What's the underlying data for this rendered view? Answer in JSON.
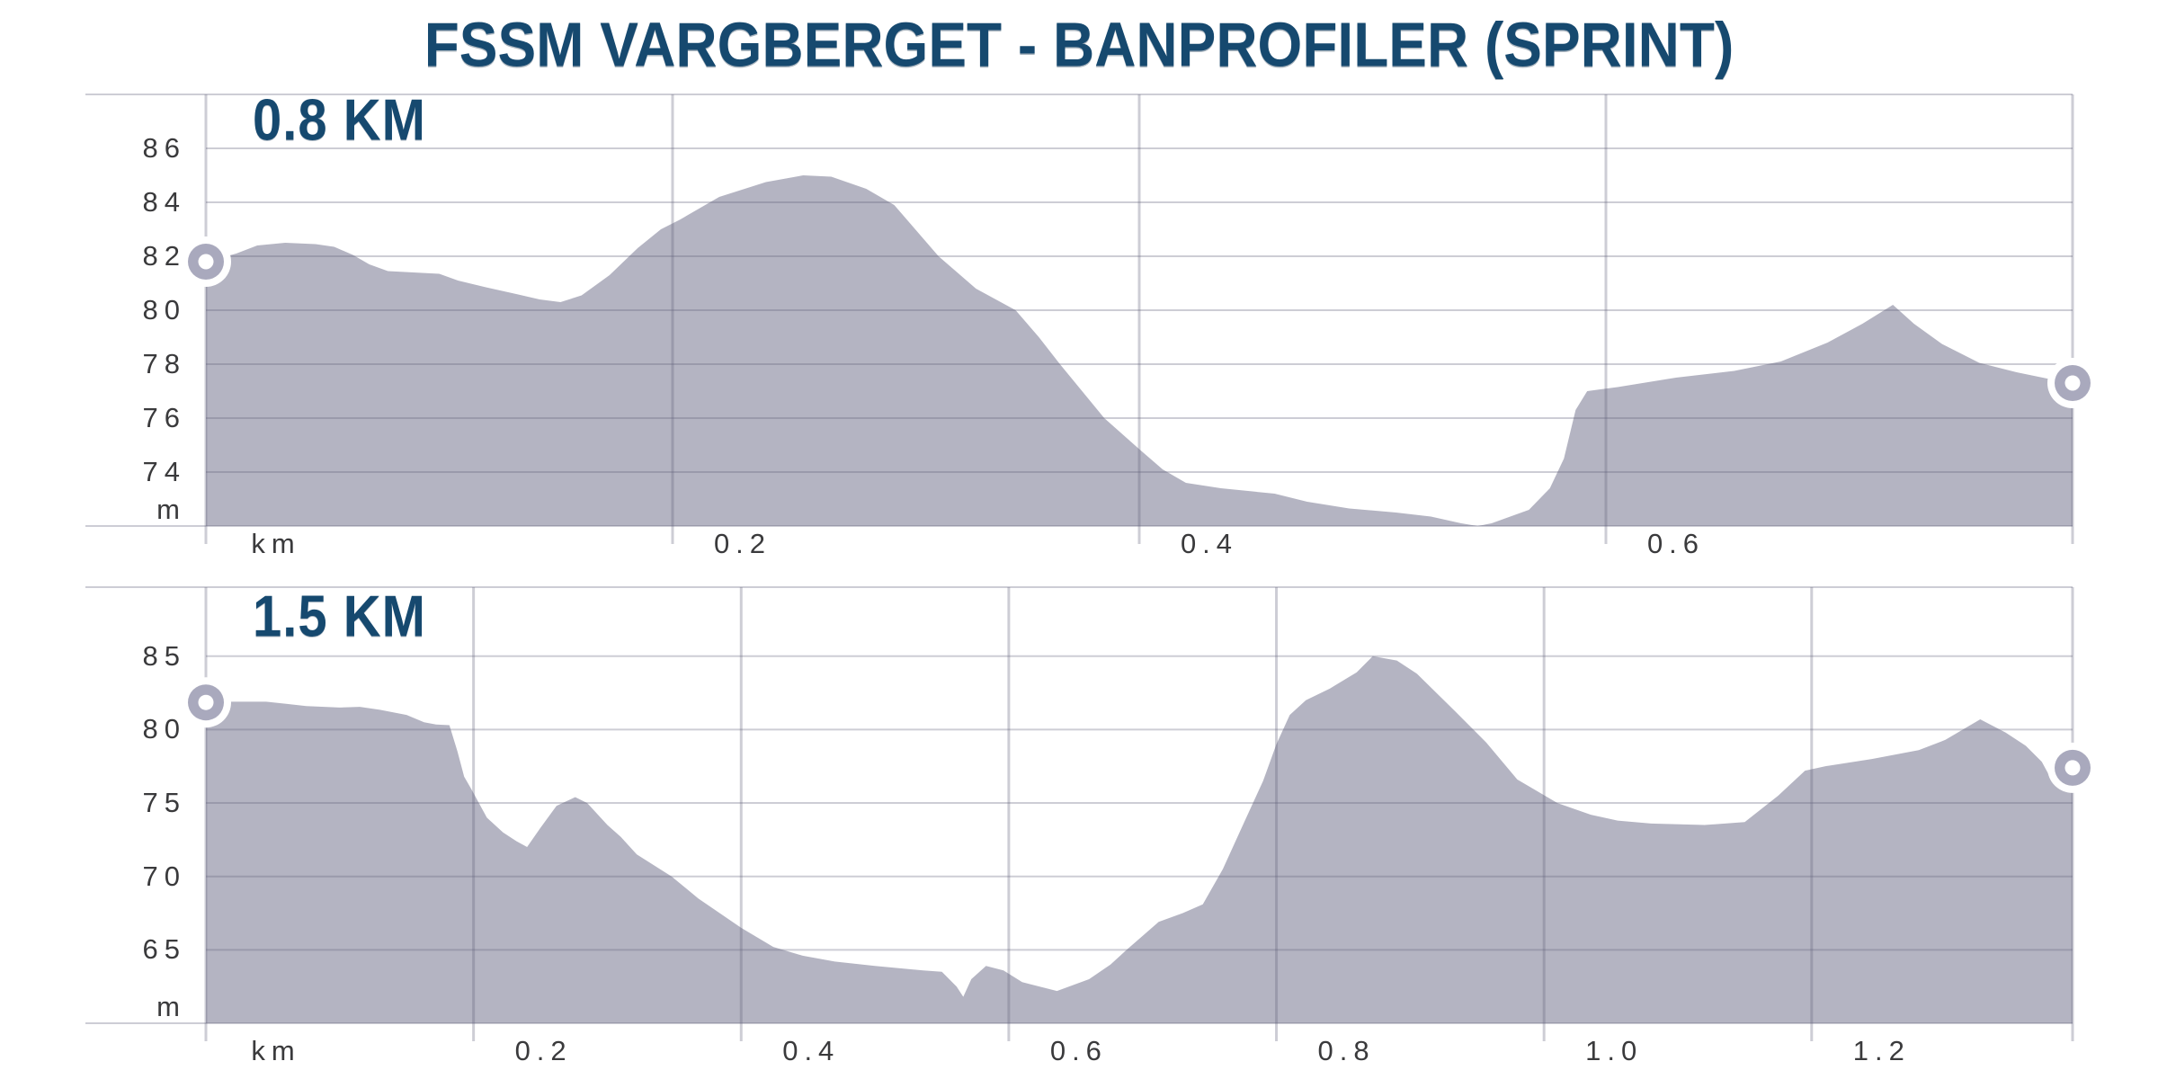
{
  "title": "FSSM VARGBERGET - BANPROFILER (SPRINT)",
  "colors": {
    "title_navy": "#16496f",
    "area_fill": "#b4b4c2",
    "gridline": "rgba(100,100,124,0.32)",
    "tick_text": "#3a3a3c",
    "marker_ring": "#a9a9bd",
    "background": "#ffffff"
  },
  "chart_data": [
    {
      "type": "area",
      "title": "0.8 KM",
      "x_unit_label": "km",
      "y_unit_label": "m",
      "legend": "none",
      "grid": "on",
      "xlim": [
        0,
        0.8
      ],
      "ylim": [
        72,
        88
      ],
      "y_ticks": [
        {
          "value": 86,
          "label": "86"
        },
        {
          "value": 84,
          "label": "84"
        },
        {
          "value": 82,
          "label": "82"
        },
        {
          "value": 80,
          "label": "80"
        },
        {
          "value": 78,
          "label": "78"
        },
        {
          "value": 76,
          "label": "76"
        },
        {
          "value": 74,
          "label": "74"
        },
        {
          "value": 72,
          "label": "m"
        }
      ],
      "x_ticks": [
        {
          "value": 0,
          "label": "km"
        },
        {
          "value": 0.2,
          "label": "0.2"
        },
        {
          "value": 0.4,
          "label": "0.4"
        },
        {
          "value": 0.6,
          "label": "0.6"
        },
        {
          "value": 0.8,
          "label": ""
        }
      ],
      "start_marker": {
        "x": 0,
        "y": 81.8
      },
      "end_marker": {
        "x": 0.8,
        "y": 77.3
      },
      "points": [
        [
          0,
          81.8
        ],
        [
          0.013,
          82.1
        ],
        [
          0.022,
          82.4
        ],
        [
          0.034,
          82.5
        ],
        [
          0.047,
          82.45
        ],
        [
          0.055,
          82.35
        ],
        [
          0.063,
          82.05
        ],
        [
          0.07,
          81.7
        ],
        [
          0.078,
          81.45
        ],
        [
          0.1,
          81.35
        ],
        [
          0.108,
          81.1
        ],
        [
          0.12,
          80.85
        ],
        [
          0.133,
          80.6
        ],
        [
          0.143,
          80.4
        ],
        [
          0.152,
          80.3
        ],
        [
          0.161,
          80.55
        ],
        [
          0.173,
          81.3
        ],
        [
          0.185,
          82.3
        ],
        [
          0.195,
          83.0
        ],
        [
          0.203,
          83.35
        ],
        [
          0.22,
          84.2
        ],
        [
          0.24,
          84.75
        ],
        [
          0.256,
          85.0
        ],
        [
          0.268,
          84.95
        ],
        [
          0.283,
          84.5
        ],
        [
          0.295,
          83.9
        ],
        [
          0.314,
          82.0
        ],
        [
          0.33,
          80.8
        ],
        [
          0.347,
          80.0
        ],
        [
          0.357,
          79.0
        ],
        [
          0.366,
          78.0
        ],
        [
          0.385,
          76.0
        ],
        [
          0.4,
          74.85
        ],
        [
          0.41,
          74.1
        ],
        [
          0.42,
          73.6
        ],
        [
          0.435,
          73.4
        ],
        [
          0.458,
          73.2
        ],
        [
          0.472,
          72.9
        ],
        [
          0.49,
          72.65
        ],
        [
          0.51,
          72.5
        ],
        [
          0.525,
          72.35
        ],
        [
          0.538,
          72.1
        ],
        [
          0.545,
          71.8
        ],
        [
          0.551,
          72.1
        ],
        [
          0.567,
          72.6
        ],
        [
          0.576,
          73.4
        ],
        [
          0.582,
          74.5
        ],
        [
          0.587,
          76.3
        ],
        [
          0.592,
          77.0
        ],
        [
          0.605,
          77.15
        ],
        [
          0.63,
          77.5
        ],
        [
          0.655,
          77.75
        ],
        [
          0.675,
          78.1
        ],
        [
          0.695,
          78.8
        ],
        [
          0.71,
          79.5
        ],
        [
          0.723,
          80.2
        ],
        [
          0.732,
          79.5
        ],
        [
          0.744,
          78.75
        ],
        [
          0.76,
          78.05
        ],
        [
          0.776,
          77.7
        ],
        [
          0.79,
          77.45
        ],
        [
          0.8,
          77.3
        ]
      ]
    },
    {
      "type": "area",
      "title": "1.5 KM",
      "x_unit_label": "km",
      "y_unit_label": "m",
      "legend": "none",
      "grid": "on",
      "xlim": [
        0,
        1.395
      ],
      "ylim": [
        60,
        89.7
      ],
      "y_ticks": [
        {
          "value": 85,
          "label": "85"
        },
        {
          "value": 80,
          "label": "80"
        },
        {
          "value": 75,
          "label": "75"
        },
        {
          "value": 70,
          "label": "70"
        },
        {
          "value": 65,
          "label": "65"
        },
        {
          "value": 60,
          "label": "m"
        }
      ],
      "x_ticks": [
        {
          "value": 0,
          "label": "km"
        },
        {
          "value": 0.2,
          "label": "0.2"
        },
        {
          "value": 0.4,
          "label": "0.4"
        },
        {
          "value": 0.6,
          "label": "0.6"
        },
        {
          "value": 0.8,
          "label": "0.8"
        },
        {
          "value": 1.0,
          "label": "1.0"
        },
        {
          "value": 1.2,
          "label": "1.2"
        },
        {
          "value": 1.4,
          "label": ""
        }
      ],
      "start_marker": {
        "x": 0,
        "y": 81.85
      },
      "end_marker": {
        "x": 1.395,
        "y": 77.4
      },
      "points": [
        [
          0,
          81.85
        ],
        [
          0.02,
          81.9
        ],
        [
          0.045,
          81.9
        ],
        [
          0.06,
          81.75
        ],
        [
          0.075,
          81.6
        ],
        [
          0.1,
          81.5
        ],
        [
          0.115,
          81.55
        ],
        [
          0.13,
          81.35
        ],
        [
          0.15,
          81.0
        ],
        [
          0.163,
          80.5
        ],
        [
          0.172,
          80.35
        ],
        [
          0.182,
          80.3
        ],
        [
          0.188,
          78.5
        ],
        [
          0.193,
          76.8
        ],
        [
          0.198,
          76.0
        ],
        [
          0.21,
          74.0
        ],
        [
          0.222,
          73.0
        ],
        [
          0.232,
          72.4
        ],
        [
          0.24,
          72.0
        ],
        [
          0.25,
          73.3
        ],
        [
          0.262,
          74.8
        ],
        [
          0.276,
          75.4
        ],
        [
          0.285,
          75.0
        ],
        [
          0.3,
          73.5
        ],
        [
          0.31,
          72.7
        ],
        [
          0.322,
          71.5
        ],
        [
          0.348,
          70.0
        ],
        [
          0.368,
          68.5
        ],
        [
          0.4,
          66.5
        ],
        [
          0.424,
          65.2
        ],
        [
          0.446,
          64.6
        ],
        [
          0.47,
          64.2
        ],
        [
          0.5,
          63.9
        ],
        [
          0.536,
          63.6
        ],
        [
          0.55,
          63.5
        ],
        [
          0.561,
          62.5
        ],
        [
          0.566,
          61.8
        ],
        [
          0.572,
          63.0
        ],
        [
          0.583,
          63.9
        ],
        [
          0.596,
          63.6
        ],
        [
          0.61,
          62.8
        ],
        [
          0.636,
          62.2
        ],
        [
          0.66,
          63.0
        ],
        [
          0.676,
          64.0
        ],
        [
          0.688,
          65.0
        ],
        [
          0.712,
          66.9
        ],
        [
          0.73,
          67.5
        ],
        [
          0.745,
          68.1
        ],
        [
          0.76,
          70.5
        ],
        [
          0.775,
          73.5
        ],
        [
          0.79,
          76.5
        ],
        [
          0.8,
          79.0
        ],
        [
          0.81,
          81.0
        ],
        [
          0.822,
          82.0
        ],
        [
          0.84,
          82.8
        ],
        [
          0.86,
          83.9
        ],
        [
          0.872,
          85.0
        ],
        [
          0.89,
          84.7
        ],
        [
          0.905,
          83.8
        ],
        [
          0.933,
          81.3
        ],
        [
          0.957,
          79.1
        ],
        [
          0.98,
          76.6
        ],
        [
          1.01,
          75.0
        ],
        [
          1.035,
          74.2
        ],
        [
          1.055,
          73.8
        ],
        [
          1.08,
          73.6
        ],
        [
          1.12,
          73.5
        ],
        [
          1.15,
          73.7
        ],
        [
          1.175,
          75.5
        ],
        [
          1.195,
          77.2
        ],
        [
          1.21,
          77.5
        ],
        [
          1.245,
          78.0
        ],
        [
          1.28,
          78.6
        ],
        [
          1.3,
          79.3
        ],
        [
          1.326,
          80.7
        ],
        [
          1.345,
          79.8
        ],
        [
          1.36,
          78.9
        ],
        [
          1.372,
          77.8
        ],
        [
          1.378,
          76.8
        ],
        [
          1.388,
          77.1
        ],
        [
          1.395,
          77.4
        ]
      ]
    }
  ]
}
